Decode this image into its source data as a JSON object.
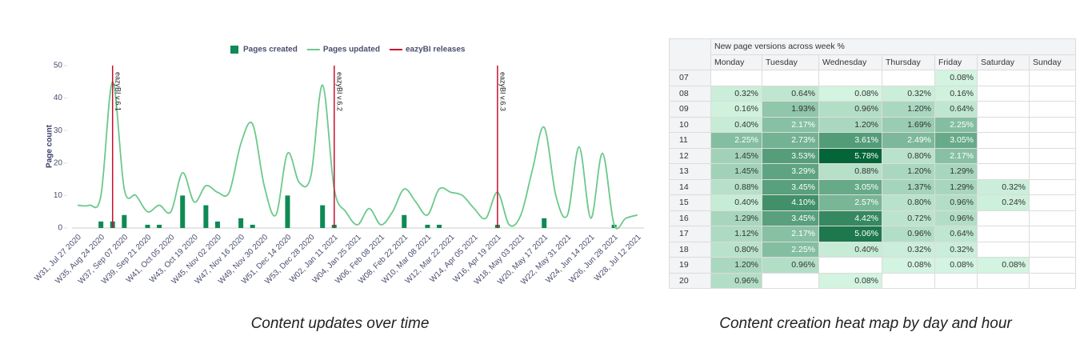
{
  "chart_data": {
    "type": "bar-line",
    "y_label": "Page count",
    "categories": [
      "W31, Jul 27 2020",
      null,
      "W35, Aug 24 2020",
      null,
      "W37, Sep 07 2020",
      null,
      "W39, Sep 21 2020",
      null,
      "W41, Oct 05 2020",
      null,
      "W43, Oct 19 2020",
      null,
      "W45, Nov 02 2020",
      null,
      "W47, Nov 16 2020",
      null,
      "W49, Nov 30 2020",
      null,
      "W51, Dec 14 2020",
      null,
      "W53, Dec 28 2020",
      null,
      "W02, Jan 11 2021",
      null,
      "W04, Jan 25 2021",
      null,
      "W06, Feb 08 2021",
      null,
      "W08, Feb 22 2021",
      null,
      "W10, Mar 08 2021",
      null,
      "W12, Mar 22 2021",
      null,
      "W14, Apr 05 2021",
      null,
      "W16, Apr 19 2021",
      null,
      "W18, May 03 2021",
      null,
      "W20, May 17 2021",
      null,
      "W22, May 31 2021",
      null,
      "W24, Jun 14 2021",
      null,
      "W26, Jun 28 2021",
      null,
      "W28, Jul 12 2021"
    ],
    "series": [
      {
        "name": "Pages created",
        "type": "bar",
        "color": "#0e8a55",
        "values": [
          null,
          null,
          2,
          2,
          4,
          null,
          1,
          1,
          null,
          10,
          null,
          7,
          2,
          null,
          3,
          1,
          null,
          null,
          10,
          null,
          null,
          7,
          1,
          null,
          null,
          null,
          null,
          null,
          4,
          null,
          1,
          1,
          null,
          null,
          null,
          null,
          1,
          null,
          null,
          null,
          3,
          null,
          null,
          null,
          null,
          null,
          1,
          null,
          null
        ]
      },
      {
        "name": "Pages updated",
        "type": "line",
        "color": "#6cc98c",
        "values": [
          7,
          7,
          10,
          45,
          12,
          10,
          5,
          7,
          5,
          17,
          8,
          13,
          11,
          11,
          26,
          32,
          13,
          4,
          23,
          14,
          16,
          44,
          12,
          5,
          1,
          6,
          1,
          5,
          12,
          8,
          4,
          12,
          11,
          10,
          6,
          3,
          11,
          1,
          4,
          18,
          31,
          10,
          4,
          25,
          3,
          23,
          1,
          3,
          4
        ]
      }
    ],
    "releases": {
      "name": "eazyBI releases",
      "color": "#c8102e",
      "items": [
        {
          "label": "eazyBI v.6.1",
          "x": 3
        },
        {
          "label": "eazyBI v.6.2",
          "x": 22
        },
        {
          "label": "eazyBI v.6.3",
          "x": 36
        }
      ]
    },
    "ylim": [
      0,
      50
    ],
    "yticks": [
      0,
      10,
      20,
      30,
      40,
      50
    ],
    "caption": "Content updates over time"
  },
  "heatmap": {
    "title": "New page versions across week %",
    "columns": [
      "Monday",
      "Tuesday",
      "Wednesday",
      "Thursday",
      "Friday",
      "Saturday",
      "Sunday"
    ],
    "rows": [
      {
        "hour": "07",
        "cells": [
          null,
          null,
          null,
          null,
          "0.08%",
          null,
          null
        ]
      },
      {
        "hour": "08",
        "cells": [
          "0.32%",
          "0.64%",
          "0.08%",
          "0.32%",
          "0.16%",
          null,
          null
        ]
      },
      {
        "hour": "09",
        "cells": [
          "0.16%",
          "1.93%",
          "0.96%",
          "1.20%",
          "0.64%",
          null,
          null
        ]
      },
      {
        "hour": "10",
        "cells": [
          "0.40%",
          "2.17%",
          "1.20%",
          "1.69%",
          "2.25%",
          null,
          null
        ]
      },
      {
        "hour": "11",
        "cells": [
          "2.25%",
          "2.73%",
          "3.61%",
          "2.49%",
          "3.05%",
          null,
          null
        ]
      },
      {
        "hour": "12",
        "cells": [
          "1.45%",
          "3.53%",
          "5.78%",
          "0.80%",
          "2.17%",
          null,
          null
        ]
      },
      {
        "hour": "13",
        "cells": [
          "1.45%",
          "3.29%",
          "0.88%",
          "1.20%",
          "1.29%",
          null,
          null
        ]
      },
      {
        "hour": "14",
        "cells": [
          "0.88%",
          "3.45%",
          "3.05%",
          "1.37%",
          "1.29%",
          "0.32%",
          null
        ]
      },
      {
        "hour": "15",
        "cells": [
          "0.40%",
          "4.10%",
          "2.57%",
          "0.80%",
          "0.96%",
          "0.24%",
          null
        ]
      },
      {
        "hour": "16",
        "cells": [
          "1.29%",
          "3.45%",
          "4.42%",
          "0.72%",
          "0.96%",
          null,
          null
        ]
      },
      {
        "hour": "17",
        "cells": [
          "1.12%",
          "2.17%",
          "5.06%",
          "0.96%",
          "0.64%",
          null,
          null
        ]
      },
      {
        "hour": "18",
        "cells": [
          "0.80%",
          "2.25%",
          "0.40%",
          "0.32%",
          "0.32%",
          null,
          null
        ]
      },
      {
        "hour": "19",
        "cells": [
          "1.20%",
          "0.96%",
          null,
          "0.08%",
          "0.08%",
          "0.08%",
          null
        ]
      },
      {
        "hour": "20",
        "cells": [
          "0.96%",
          null,
          "0.08%",
          null,
          null,
          null,
          null
        ]
      }
    ],
    "caption": "Content creation heat map by day and hour"
  }
}
